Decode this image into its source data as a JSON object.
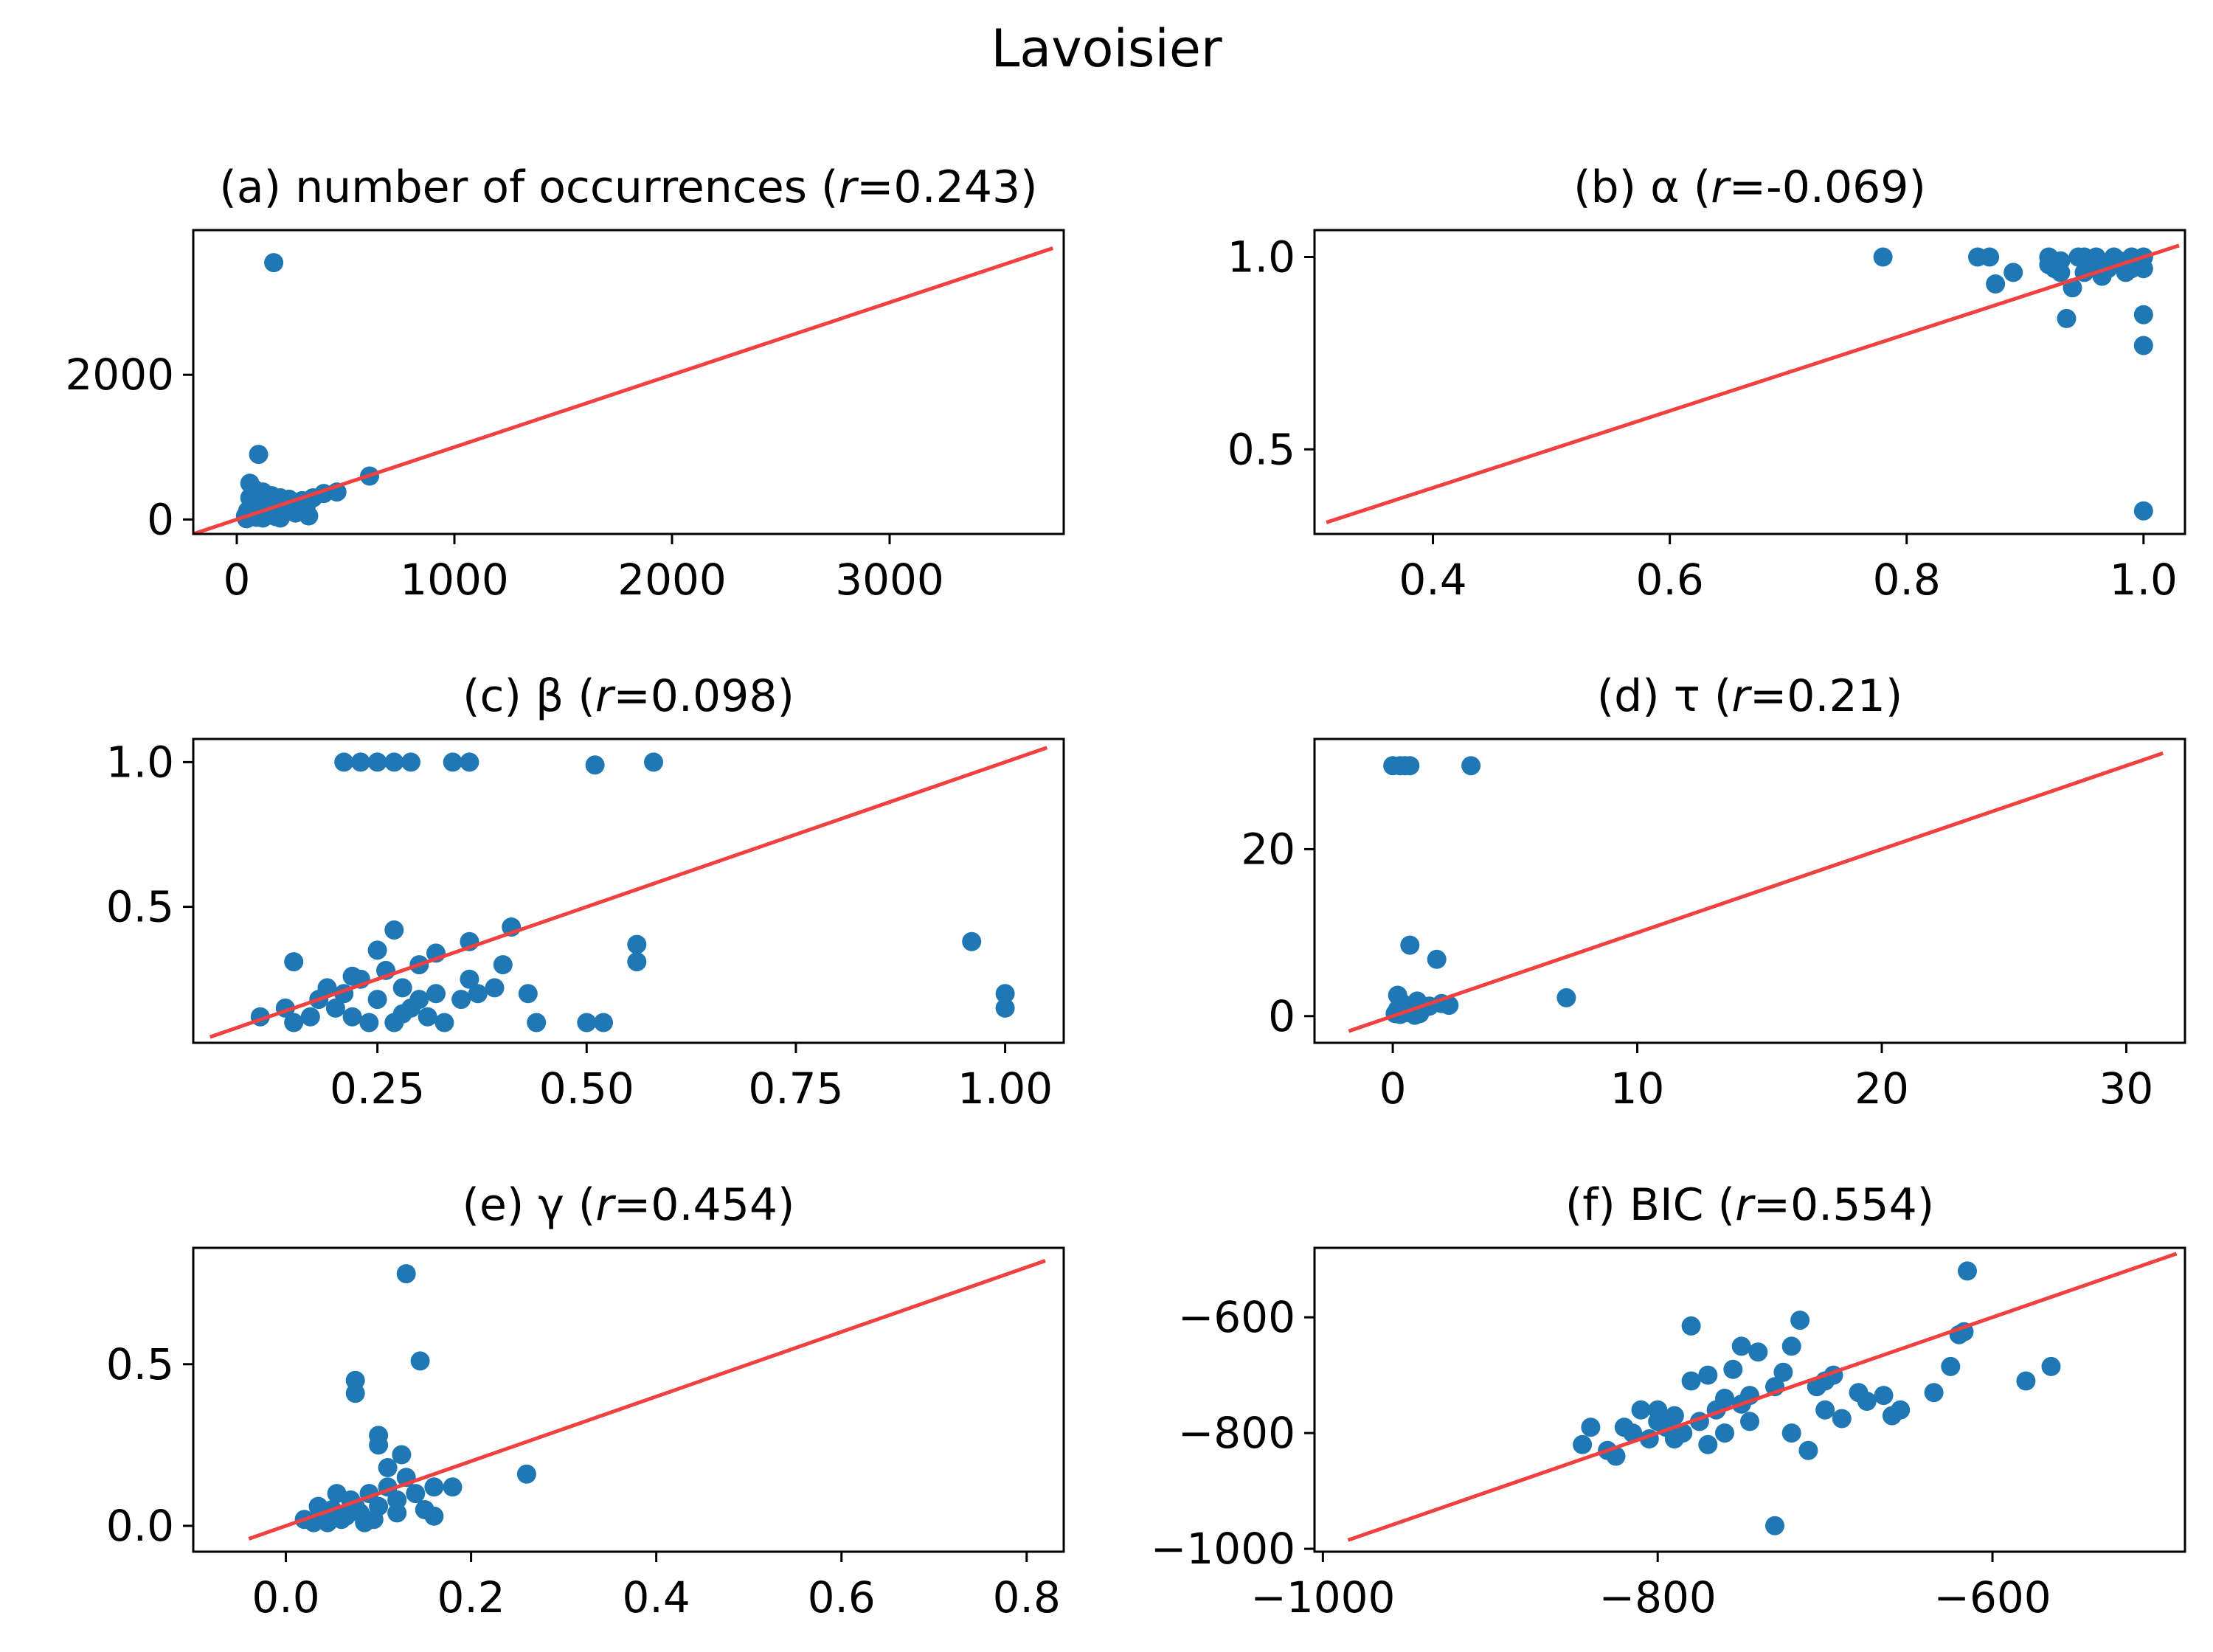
{
  "title": "Lavoisier",
  "colors": {
    "points": "#1f77b4",
    "fit_line": "#f04040",
    "axes": "#000000",
    "background": "#ffffff"
  },
  "chart_data": [
    {
      "type": "scatter",
      "title": "(a) number of occurrences (r=0.243)",
      "title_label": "(a) number of occurrences (",
      "title_var": "r",
      "title_value": "=0.243)",
      "xlim": [
        -200,
        3800
      ],
      "ylim": [
        -200,
        4000
      ],
      "xticks": [
        0,
        1000,
        2000,
        3000
      ],
      "xtick_labels": [
        "0",
        "1000",
        "2000",
        "3000"
      ],
      "yticks": [
        0,
        2000
      ],
      "ytick_labels": [
        "0",
        "2000"
      ],
      "fit_line": [
        [
          -200,
          -200
        ],
        [
          3750,
          3750
        ]
      ],
      "points": [
        [
          170,
          3550
        ],
        [
          100,
          900
        ],
        [
          610,
          600
        ],
        [
          60,
          500
        ],
        [
          80,
          420
        ],
        [
          120,
          380
        ],
        [
          160,
          330
        ],
        [
          200,
          300
        ],
        [
          240,
          280
        ],
        [
          300,
          260
        ],
        [
          350,
          300
        ],
        [
          400,
          360
        ],
        [
          460,
          380
        ],
        [
          330,
          50
        ],
        [
          40,
          50
        ],
        [
          50,
          120
        ],
        [
          70,
          80
        ],
        [
          90,
          200
        ],
        [
          110,
          150
        ],
        [
          130,
          100
        ],
        [
          150,
          60
        ],
        [
          180,
          40
        ],
        [
          210,
          80
        ],
        [
          250,
          120
        ],
        [
          280,
          180
        ],
        [
          60,
          300
        ],
        [
          90,
          30
        ],
        [
          120,
          20
        ],
        [
          140,
          250
        ],
        [
          190,
          220
        ],
        [
          230,
          160
        ],
        [
          270,
          90
        ],
        [
          320,
          200
        ],
        [
          100,
          60
        ],
        [
          70,
          230
        ],
        [
          160,
          130
        ],
        [
          200,
          20
        ],
        [
          45,
          10
        ],
        [
          80,
          140
        ],
        [
          110,
          260
        ],
        [
          150,
          180
        ],
        [
          260,
          240
        ]
      ]
    },
    {
      "type": "scatter",
      "title": "(b) α (r=-0.069)",
      "title_label": "(b) α (",
      "title_var": "r",
      "title_value": "=-0.069)",
      "xlim": [
        0.3,
        1.035
      ],
      "ylim": [
        0.28,
        1.07
      ],
      "xticks": [
        0.4,
        0.6,
        0.8,
        1.0
      ],
      "xtick_labels": [
        "0.4",
        "0.6",
        "0.8",
        "1.0"
      ],
      "yticks": [
        0.5,
        1.0
      ],
      "ytick_labels": [
        "0.5",
        "1.0"
      ],
      "fit_line": [
        [
          0.31,
          0.31
        ],
        [
          1.03,
          1.03
        ]
      ],
      "points": [
        [
          0.78,
          1.0
        ],
        [
          0.86,
          1.0
        ],
        [
          0.87,
          1.0
        ],
        [
          0.875,
          0.93
        ],
        [
          0.89,
          0.96
        ],
        [
          0.92,
          1.0
        ],
        [
          0.925,
          0.97
        ],
        [
          0.93,
          0.99
        ],
        [
          0.935,
          0.84
        ],
        [
          0.94,
          0.92
        ],
        [
          0.945,
          1.0
        ],
        [
          0.95,
          0.96
        ],
        [
          0.955,
          0.98
        ],
        [
          0.96,
          1.0
        ],
        [
          0.965,
          0.95
        ],
        [
          0.97,
          0.97
        ],
        [
          0.975,
          1.0
        ],
        [
          0.98,
          0.99
        ],
        [
          0.985,
          0.96
        ],
        [
          0.99,
          1.0
        ],
        [
          0.995,
          0.98
        ],
        [
          1.0,
          1.0
        ],
        [
          1.0,
          0.97
        ],
        [
          1.0,
          0.85
        ],
        [
          1.0,
          0.77
        ],
        [
          1.0,
          0.34
        ],
        [
          0.93,
          0.96
        ],
        [
          0.95,
          1.0
        ],
        [
          0.97,
          0.98
        ],
        [
          0.99,
          0.97
        ],
        [
          0.92,
          0.98
        ]
      ]
    },
    {
      "type": "scatter",
      "title": "(c) β (r=0.098)",
      "title_label": "(c) β (",
      "title_var": "r",
      "title_value": "=0.098)",
      "xlim": [
        0.03,
        1.07
      ],
      "ylim": [
        0.03,
        1.08
      ],
      "xticks": [
        0.25,
        0.5,
        0.75,
        1.0
      ],
      "xtick_labels": [
        "0.25",
        "0.50",
        "0.75",
        "1.00"
      ],
      "yticks": [
        0.5,
        1.0
      ],
      "ytick_labels": [
        "0.5",
        "1.0"
      ],
      "fit_line": [
        [
          0.05,
          0.05
        ],
        [
          1.05,
          1.05
        ]
      ],
      "points": [
        [
          0.21,
          1.0
        ],
        [
          0.23,
          1.0
        ],
        [
          0.25,
          1.0
        ],
        [
          0.27,
          1.0
        ],
        [
          0.29,
          1.0
        ],
        [
          0.34,
          1.0
        ],
        [
          0.36,
          1.0
        ],
        [
          0.51,
          0.99
        ],
        [
          0.58,
          1.0
        ],
        [
          0.15,
          0.31
        ],
        [
          0.27,
          0.42
        ],
        [
          0.32,
          0.34
        ],
        [
          0.36,
          0.38
        ],
        [
          0.41,
          0.43
        ],
        [
          0.56,
          0.37
        ],
        [
          0.56,
          0.31
        ],
        [
          0.96,
          0.38
        ],
        [
          1.0,
          0.2
        ],
        [
          1.0,
          0.15
        ],
        [
          0.11,
          0.12
        ],
        [
          0.14,
          0.15
        ],
        [
          0.15,
          0.1
        ],
        [
          0.17,
          0.12
        ],
        [
          0.18,
          0.18
        ],
        [
          0.2,
          0.15
        ],
        [
          0.21,
          0.2
        ],
        [
          0.22,
          0.12
        ],
        [
          0.23,
          0.25
        ],
        [
          0.24,
          0.1
        ],
        [
          0.25,
          0.18
        ],
        [
          0.26,
          0.28
        ],
        [
          0.27,
          0.1
        ],
        [
          0.28,
          0.22
        ],
        [
          0.29,
          0.15
        ],
        [
          0.3,
          0.3
        ],
        [
          0.31,
          0.12
        ],
        [
          0.32,
          0.2
        ],
        [
          0.33,
          0.1
        ],
        [
          0.35,
          0.18
        ],
        [
          0.36,
          0.25
        ],
        [
          0.37,
          0.2
        ],
        [
          0.39,
          0.22
        ],
        [
          0.4,
          0.3
        ],
        [
          0.43,
          0.2
        ],
        [
          0.44,
          0.1
        ],
        [
          0.5,
          0.1
        ],
        [
          0.52,
          0.1
        ],
        [
          0.25,
          0.35
        ],
        [
          0.22,
          0.26
        ],
        [
          0.19,
          0.22
        ],
        [
          0.28,
          0.13
        ],
        [
          0.3,
          0.18
        ]
      ]
    },
    {
      "type": "scatter",
      "title": "(d) τ (r=0.21)",
      "title_label": "(d) τ (",
      "title_var": "r",
      "title_value": "=0.21)",
      "xlim": [
        -3.2,
        32.4
      ],
      "ylim": [
        -3.2,
        33.2
      ],
      "xticks": [
        0,
        10,
        20,
        30
      ],
      "xtick_labels": [
        "0",
        "10",
        "20",
        "30"
      ],
      "yticks": [
        0,
        20
      ],
      "ytick_labels": [
        "0",
        "20"
      ],
      "fit_line": [
        [
          -1.8,
          -1.8
        ],
        [
          31.5,
          31.5
        ]
      ],
      "points": [
        [
          0.0,
          30.0
        ],
        [
          0.3,
          30.0
        ],
        [
          0.5,
          30.0
        ],
        [
          0.7,
          30.0
        ],
        [
          3.2,
          30.0
        ],
        [
          0.7,
          8.5
        ],
        [
          1.8,
          6.8
        ],
        [
          7.1,
          2.2
        ],
        [
          0.2,
          2.5
        ],
        [
          0.4,
          1.5
        ],
        [
          0.6,
          1.0
        ],
        [
          0.8,
          0.5
        ],
        [
          1.0,
          1.8
        ],
        [
          1.2,
          0.8
        ],
        [
          1.5,
          1.2
        ],
        [
          2.0,
          1.5
        ],
        [
          2.3,
          1.3
        ],
        [
          0.1,
          0.3
        ],
        [
          0.3,
          0.2
        ],
        [
          0.5,
          0.4
        ],
        [
          0.9,
          0.1
        ],
        [
          0.2,
          0.8
        ],
        [
          1.1,
          0.3
        ]
      ]
    },
    {
      "type": "scatter",
      "title": "(e) γ (r=0.454)",
      "title_label": "(e) γ (",
      "title_var": "r",
      "title_value": "=0.454)",
      "xlim": [
        -0.1,
        0.84
      ],
      "ylim": [
        -0.08,
        0.86
      ],
      "xticks": [
        0.0,
        0.2,
        0.4,
        0.6,
        0.8
      ],
      "xtick_labels": [
        "0.0",
        "0.2",
        "0.4",
        "0.6",
        "0.8"
      ],
      "yticks": [
        0.0,
        0.5
      ],
      "ytick_labels": [
        "0.0",
        "0.5"
      ],
      "fit_line": [
        [
          -0.04,
          -0.04
        ],
        [
          0.82,
          0.82
        ]
      ],
      "points": [
        [
          0.13,
          0.78
        ],
        [
          0.145,
          0.51
        ],
        [
          0.075,
          0.45
        ],
        [
          0.075,
          0.41
        ],
        [
          0.1,
          0.28
        ],
        [
          0.1,
          0.25
        ],
        [
          0.125,
          0.22
        ],
        [
          0.26,
          0.16
        ],
        [
          0.16,
          0.12
        ],
        [
          0.18,
          0.12
        ],
        [
          0.16,
          0.03
        ],
        [
          0.02,
          0.02
        ],
        [
          0.03,
          0.01
        ],
        [
          0.04,
          0.03
        ],
        [
          0.05,
          0.05
        ],
        [
          0.06,
          0.02
        ],
        [
          0.07,
          0.08
        ],
        [
          0.08,
          0.04
        ],
        [
          0.09,
          0.1
        ],
        [
          0.1,
          0.06
        ],
        [
          0.11,
          0.12
        ],
        [
          0.12,
          0.08
        ],
        [
          0.13,
          0.15
        ],
        [
          0.14,
          0.1
        ],
        [
          0.15,
          0.05
        ],
        [
          0.035,
          0.06
        ],
        [
          0.055,
          0.1
        ],
        [
          0.065,
          0.03
        ],
        [
          0.085,
          0.01
        ],
        [
          0.095,
          0.02
        ],
        [
          0.045,
          0.01
        ],
        [
          0.075,
          0.06
        ],
        [
          0.11,
          0.18
        ],
        [
          0.12,
          0.04
        ]
      ]
    },
    {
      "type": "scatter",
      "title": "(f) BIC (r=0.554)",
      "title_label": "(f) BIC (",
      "title_var": "r",
      "title_value": "=0.554)",
      "xlim": [
        -1005,
        -485
      ],
      "ylim": [
        -1005,
        -480
      ],
      "xticks": [
        -1000,
        -800,
        -600
      ],
      "xtick_labels": [
        "−1000",
        "−800",
        "−600"
      ],
      "yticks": [
        -1000,
        -800,
        -600
      ],
      "ytick_labels": [
        "−1000",
        "−800",
        "−600"
      ],
      "fit_line": [
        [
          -985,
          -985
        ],
        [
          -490,
          -490
        ]
      ],
      "points": [
        [
          -615,
          -520
        ],
        [
          -617,
          -625
        ],
        [
          -620,
          -630
        ],
        [
          -625,
          -685
        ],
        [
          -635,
          -730
        ],
        [
          -580,
          -710
        ],
        [
          -565,
          -685
        ],
        [
          -655,
          -760
        ],
        [
          -660,
          -770
        ],
        [
          -680,
          -730
        ],
        [
          -690,
          -775
        ],
        [
          -700,
          -760
        ],
        [
          -715,
          -605
        ],
        [
          -720,
          -650
        ],
        [
          -725,
          -695
        ],
        [
          -730,
          -960
        ],
        [
          -730,
          -720
        ],
        [
          -740,
          -660
        ],
        [
          -745,
          -735
        ],
        [
          -750,
          -650
        ],
        [
          -755,
          -690
        ],
        [
          -760,
          -740
        ],
        [
          -765,
          -760
        ],
        [
          -770,
          -700
        ],
        [
          -775,
          -780
        ],
        [
          -780,
          -615
        ],
        [
          -785,
          -800
        ],
        [
          -790,
          -770
        ],
        [
          -795,
          -790
        ],
        [
          -800,
          -780
        ],
        [
          -805,
          -810
        ],
        [
          -810,
          -760
        ],
        [
          -815,
          -800
        ],
        [
          -820,
          -790
        ],
        [
          -825,
          -840
        ],
        [
          -830,
          -830
        ],
        [
          -840,
          -790
        ],
        [
          -845,
          -820
        ],
        [
          -720,
          -800
        ],
        [
          -710,
          -830
        ],
        [
          -700,
          -710
        ],
        [
          -695,
          -700
        ],
        [
          -705,
          -720
        ],
        [
          -675,
          -745
        ],
        [
          -665,
          -735
        ],
        [
          -760,
          -800
        ],
        [
          -770,
          -820
        ],
        [
          -790,
          -810
        ],
        [
          -800,
          -760
        ],
        [
          -780,
          -710
        ],
        [
          -750,
          -750
        ],
        [
          -745,
          -780
        ]
      ]
    }
  ]
}
